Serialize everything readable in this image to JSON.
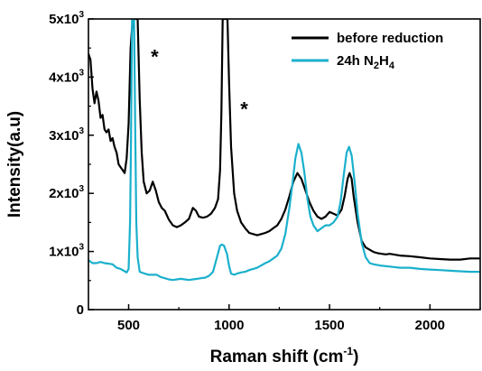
{
  "chart_data": {
    "type": "line",
    "xlabel_main": "Raman shift (cm",
    "xlabel_sup": "-1",
    "xlabel_end": ")",
    "ylabel": "Intensity(a.u)",
    "xlim": [
      300,
      2250
    ],
    "ylim": [
      0,
      5000
    ],
    "x_ticks": [
      {
        "value": 500,
        "label": "500"
      },
      {
        "value": 1000,
        "label": "1000"
      },
      {
        "value": 1500,
        "label": "1500"
      },
      {
        "value": 2000,
        "label": "2000"
      }
    ],
    "y_ticks": [
      {
        "value": 0,
        "base": "0",
        "exp": ""
      },
      {
        "value": 1000,
        "base": "1x10",
        "exp": "3"
      },
      {
        "value": 2000,
        "base": "2x10",
        "exp": "3"
      },
      {
        "value": 3000,
        "base": "3x10",
        "exp": "3"
      },
      {
        "value": 4000,
        "base": "4x10",
        "exp": "3"
      },
      {
        "value": 5000,
        "base": "5x10",
        "exp": "3"
      }
    ],
    "annotations": [
      {
        "text": "*",
        "x": 630,
        "y": 4450
      },
      {
        "text": "*",
        "x": 1075,
        "y": 3550
      }
    ],
    "series": [
      {
        "name": "before reduction",
        "color": "#000000",
        "points": [
          [
            300,
            4400
          ],
          [
            310,
            4300
          ],
          [
            320,
            3800
          ],
          [
            330,
            3550
          ],
          [
            340,
            3750
          ],
          [
            350,
            3600
          ],
          [
            360,
            3300
          ],
          [
            370,
            3350
          ],
          [
            380,
            3100
          ],
          [
            390,
            3050
          ],
          [
            400,
            3100
          ],
          [
            410,
            2900
          ],
          [
            420,
            2950
          ],
          [
            430,
            2800
          ],
          [
            440,
            2700
          ],
          [
            450,
            2500
          ],
          [
            460,
            2450
          ],
          [
            470,
            2400
          ],
          [
            480,
            2350
          ],
          [
            490,
            2600
          ],
          [
            500,
            3200
          ],
          [
            510,
            4500
          ],
          [
            520,
            5000
          ],
          [
            545,
            5000
          ],
          [
            555,
            3600
          ],
          [
            565,
            2700
          ],
          [
            575,
            2200
          ],
          [
            590,
            2000
          ],
          [
            605,
            2050
          ],
          [
            620,
            2200
          ],
          [
            635,
            2050
          ],
          [
            650,
            1850
          ],
          [
            665,
            1750
          ],
          [
            680,
            1700
          ],
          [
            700,
            1550
          ],
          [
            720,
            1450
          ],
          [
            740,
            1420
          ],
          [
            760,
            1450
          ],
          [
            780,
            1500
          ],
          [
            800,
            1560
          ],
          [
            820,
            1750
          ],
          [
            835,
            1700
          ],
          [
            850,
            1600
          ],
          [
            870,
            1580
          ],
          [
            890,
            1600
          ],
          [
            910,
            1650
          ],
          [
            930,
            1750
          ],
          [
            945,
            1900
          ],
          [
            955,
            2400
          ],
          [
            962,
            3400
          ],
          [
            968,
            5000
          ],
          [
            992,
            5000
          ],
          [
            1000,
            3900
          ],
          [
            1010,
            2800
          ],
          [
            1025,
            2000
          ],
          [
            1040,
            1700
          ],
          [
            1060,
            1500
          ],
          [
            1080,
            1400
          ],
          [
            1100,
            1320
          ],
          [
            1120,
            1300
          ],
          [
            1140,
            1280
          ],
          [
            1160,
            1300
          ],
          [
            1180,
            1320
          ],
          [
            1200,
            1350
          ],
          [
            1220,
            1400
          ],
          [
            1240,
            1450
          ],
          [
            1260,
            1560
          ],
          [
            1280,
            1720
          ],
          [
            1300,
            1950
          ],
          [
            1320,
            2200
          ],
          [
            1340,
            2350
          ],
          [
            1360,
            2250
          ],
          [
            1380,
            2050
          ],
          [
            1400,
            1850
          ],
          [
            1420,
            1700
          ],
          [
            1440,
            1600
          ],
          [
            1460,
            1560
          ],
          [
            1480,
            1600
          ],
          [
            1500,
            1680
          ],
          [
            1520,
            1650
          ],
          [
            1540,
            1620
          ],
          [
            1560,
            1720
          ],
          [
            1575,
            1950
          ],
          [
            1590,
            2250
          ],
          [
            1600,
            2350
          ],
          [
            1610,
            2250
          ],
          [
            1620,
            1950
          ],
          [
            1640,
            1500
          ],
          [
            1660,
            1180
          ],
          [
            1680,
            1070
          ],
          [
            1700,
            1030
          ],
          [
            1720,
            990
          ],
          [
            1740,
            970
          ],
          [
            1760,
            960
          ],
          [
            1780,
            950
          ],
          [
            1800,
            960
          ],
          [
            1850,
            930
          ],
          [
            1900,
            920
          ],
          [
            1950,
            900
          ],
          [
            2000,
            880
          ],
          [
            2050,
            870
          ],
          [
            2100,
            860
          ],
          [
            2150,
            860
          ],
          [
            2200,
            880
          ],
          [
            2250,
            880
          ]
        ]
      },
      {
        "name": "24h N₂H₄",
        "color": "#1ab0cc",
        "points": [
          [
            300,
            850
          ],
          [
            320,
            800
          ],
          [
            340,
            800
          ],
          [
            360,
            820
          ],
          [
            380,
            800
          ],
          [
            400,
            790
          ],
          [
            420,
            780
          ],
          [
            440,
            720
          ],
          [
            460,
            700
          ],
          [
            480,
            660
          ],
          [
            490,
            640
          ],
          [
            500,
            700
          ],
          [
            507,
            1500
          ],
          [
            512,
            3000
          ],
          [
            517,
            5000
          ],
          [
            527,
            5000
          ],
          [
            533,
            3000
          ],
          [
            538,
            1500
          ],
          [
            545,
            900
          ],
          [
            555,
            650
          ],
          [
            580,
            620
          ],
          [
            600,
            600
          ],
          [
            620,
            600
          ],
          [
            640,
            600
          ],
          [
            660,
            560
          ],
          [
            680,
            540
          ],
          [
            700,
            520
          ],
          [
            720,
            510
          ],
          [
            740,
            520
          ],
          [
            760,
            530
          ],
          [
            780,
            520
          ],
          [
            800,
            510
          ],
          [
            820,
            520
          ],
          [
            840,
            530
          ],
          [
            860,
            540
          ],
          [
            880,
            550
          ],
          [
            900,
            580
          ],
          [
            920,
            650
          ],
          [
            940,
            900
          ],
          [
            955,
            1100
          ],
          [
            965,
            1120
          ],
          [
            975,
            1100
          ],
          [
            990,
            950
          ],
          [
            1000,
            750
          ],
          [
            1010,
            620
          ],
          [
            1025,
            600
          ],
          [
            1040,
            620
          ],
          [
            1060,
            640
          ],
          [
            1080,
            650
          ],
          [
            1100,
            680
          ],
          [
            1120,
            700
          ],
          [
            1140,
            720
          ],
          [
            1160,
            760
          ],
          [
            1180,
            800
          ],
          [
            1200,
            830
          ],
          [
            1220,
            880
          ],
          [
            1240,
            930
          ],
          [
            1260,
            1050
          ],
          [
            1280,
            1300
          ],
          [
            1300,
            1750
          ],
          [
            1315,
            2150
          ],
          [
            1330,
            2600
          ],
          [
            1345,
            2850
          ],
          [
            1360,
            2700
          ],
          [
            1375,
            2350
          ],
          [
            1390,
            1900
          ],
          [
            1405,
            1600
          ],
          [
            1420,
            1450
          ],
          [
            1440,
            1350
          ],
          [
            1460,
            1400
          ],
          [
            1480,
            1450
          ],
          [
            1500,
            1450
          ],
          [
            1520,
            1500
          ],
          [
            1540,
            1600
          ],
          [
            1555,
            1850
          ],
          [
            1570,
            2300
          ],
          [
            1585,
            2700
          ],
          [
            1597,
            2800
          ],
          [
            1610,
            2650
          ],
          [
            1625,
            2200
          ],
          [
            1640,
            1650
          ],
          [
            1660,
            1150
          ],
          [
            1680,
            900
          ],
          [
            1700,
            800
          ],
          [
            1720,
            780
          ],
          [
            1750,
            760
          ],
          [
            1800,
            740
          ],
          [
            1850,
            720
          ],
          [
            1900,
            720
          ],
          [
            1950,
            700
          ],
          [
            2000,
            690
          ],
          [
            2050,
            680
          ],
          [
            2100,
            670
          ],
          [
            2150,
            660
          ],
          [
            2200,
            650
          ],
          [
            2250,
            650
          ]
        ]
      }
    ],
    "legend": {
      "position": "top-right",
      "items": [
        {
          "label": "before reduction",
          "label_sub": "",
          "color": "#000000"
        },
        {
          "label": "24h N",
          "label_sub": "2",
          "label_mid": "H",
          "label_sub2": "4",
          "color": "#1ab0cc"
        }
      ]
    }
  }
}
